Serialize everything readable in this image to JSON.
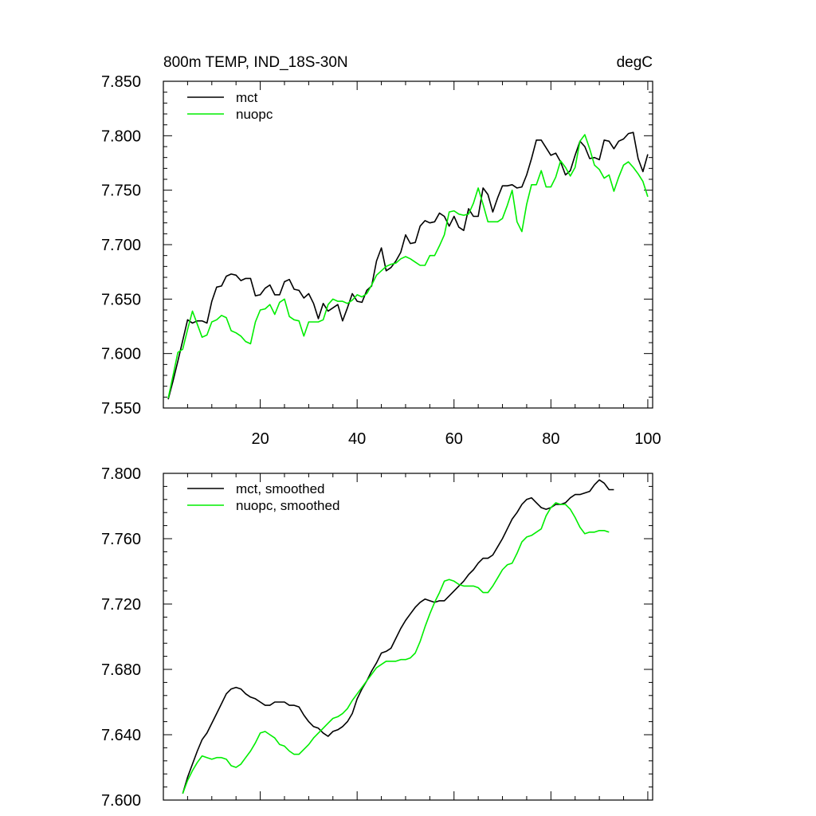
{
  "chart_data": [
    {
      "type": "line",
      "title": "800m TEMP, IND_18S-30N",
      "units": "degC",
      "xlim": [
        0,
        101
      ],
      "ylim": [
        7.55,
        7.85
      ],
      "xticks": [
        20,
        40,
        60,
        80,
        100
      ],
      "yticks": [
        7.55,
        7.6,
        7.65,
        7.7,
        7.75,
        7.8,
        7.85
      ],
      "ytick_labels": [
        "7.550",
        "7.600",
        "7.650",
        "7.700",
        "7.750",
        "7.800",
        "7.850"
      ],
      "x_start": 1,
      "series": [
        {
          "name": "mct",
          "color": "#000000",
          "values": [
            7.558,
            7.575,
            7.593,
            7.612,
            7.631,
            7.628,
            7.63,
            7.63,
            7.628,
            7.648,
            7.661,
            7.662,
            7.671,
            7.673,
            7.672,
            7.667,
            7.669,
            7.669,
            7.653,
            7.654,
            7.66,
            7.663,
            7.654,
            7.654,
            7.666,
            7.668,
            7.659,
            7.658,
            7.651,
            7.655,
            7.646,
            7.632,
            7.646,
            7.639,
            7.642,
            7.645,
            7.63,
            7.642,
            7.655,
            7.648,
            7.647,
            7.658,
            7.662,
            7.685,
            7.697,
            7.676,
            7.679,
            7.685,
            7.693,
            7.709,
            7.701,
            7.702,
            7.717,
            7.722,
            7.72,
            7.721,
            7.729,
            7.726,
            7.717,
            7.726,
            7.716,
            7.713,
            7.733,
            7.726,
            7.726,
            7.752,
            7.746,
            7.73,
            7.743,
            7.754,
            7.754,
            7.755,
            7.752,
            7.753,
            7.764,
            7.779,
            7.796,
            7.796,
            7.789,
            7.782,
            7.784,
            7.776,
            7.764,
            7.768,
            7.782,
            7.795,
            7.79,
            7.779,
            7.78,
            7.778,
            7.796,
            7.795,
            7.788,
            7.795,
            7.797,
            7.802,
            7.803,
            7.779,
            7.767,
            7.783
          ]
        },
        {
          "name": "nuopc",
          "color": "#00ee00",
          "values": [
            7.559,
            7.58,
            7.601,
            7.604,
            7.622,
            7.639,
            7.627,
            7.615,
            7.617,
            7.629,
            7.631,
            7.635,
            7.633,
            7.621,
            7.619,
            7.616,
            7.611,
            7.609,
            7.629,
            7.64,
            7.641,
            7.645,
            7.636,
            7.647,
            7.65,
            7.634,
            7.631,
            7.63,
            7.616,
            7.629,
            7.629,
            7.629,
            7.631,
            7.645,
            7.65,
            7.648,
            7.648,
            7.646,
            7.649,
            7.654,
            7.652,
            7.655,
            7.663,
            7.672,
            7.676,
            7.68,
            7.682,
            7.683,
            7.687,
            7.689,
            7.687,
            7.684,
            7.681,
            7.681,
            7.69,
            7.69,
            7.699,
            7.709,
            7.73,
            7.731,
            7.728,
            7.727,
            7.728,
            7.738,
            7.752,
            7.737,
            7.721,
            7.721,
            7.721,
            7.724,
            7.736,
            7.75,
            7.721,
            7.712,
            7.737,
            7.755,
            7.755,
            7.768,
            7.753,
            7.753,
            7.762,
            7.777,
            7.771,
            7.763,
            7.771,
            7.795,
            7.801,
            7.788,
            7.773,
            7.769,
            7.761,
            7.764,
            7.749,
            7.762,
            7.773,
            7.776,
            7.771,
            7.765,
            7.758,
            7.744
          ]
        }
      ]
    },
    {
      "type": "line",
      "title": "",
      "xlim": [
        0,
        101
      ],
      "ylim": [
        7.6,
        7.8
      ],
      "xticks": [
        20,
        40,
        60,
        80,
        100
      ],
      "yticks": [
        7.6,
        7.64,
        7.68,
        7.72,
        7.76,
        7.8
      ],
      "ytick_labels": [
        "7.600",
        "7.640",
        "7.680",
        "7.720",
        "7.760",
        "7.800"
      ],
      "x_start": 4,
      "series": [
        {
          "name": "mct, smoothed",
          "color": "#000000",
          "values": [
            7.604,
            7.614,
            7.622,
            7.63,
            7.637,
            7.641,
            7.647,
            7.653,
            7.659,
            7.665,
            7.668,
            7.669,
            7.668,
            7.665,
            7.663,
            7.662,
            7.66,
            7.658,
            7.658,
            7.66,
            7.66,
            7.66,
            7.658,
            7.658,
            7.657,
            7.652,
            7.648,
            7.645,
            7.644,
            7.641,
            7.639,
            7.642,
            7.643,
            7.645,
            7.648,
            7.653,
            7.662,
            7.668,
            7.673,
            7.679,
            7.684,
            7.69,
            7.691,
            7.693,
            7.699,
            7.705,
            7.71,
            7.714,
            7.718,
            7.721,
            7.723,
            7.722,
            7.721,
            7.722,
            7.722,
            7.725,
            7.728,
            7.731,
            7.734,
            7.738,
            7.741,
            7.745,
            7.748,
            7.748,
            7.75,
            7.755,
            7.76,
            7.766,
            7.772,
            7.776,
            7.781,
            7.784,
            7.785,
            7.782,
            7.779,
            7.778,
            7.779,
            7.781,
            7.781,
            7.782,
            7.785,
            7.787,
            7.787,
            7.788,
            7.789,
            7.793,
            7.796,
            7.794,
            7.79,
            7.79
          ]
        },
        {
          "name": "nuopc, smoothed",
          "color": "#00ee00",
          "values": [
            7.604,
            7.612,
            7.618,
            7.623,
            7.627,
            7.626,
            7.625,
            7.626,
            7.626,
            7.625,
            7.621,
            7.62,
            7.622,
            7.626,
            7.63,
            7.635,
            7.641,
            7.642,
            7.64,
            7.638,
            7.634,
            7.633,
            7.63,
            7.628,
            7.628,
            7.631,
            7.634,
            7.638,
            7.641,
            7.644,
            7.647,
            7.65,
            7.651,
            7.653,
            7.656,
            7.661,
            7.665,
            7.669,
            7.673,
            7.677,
            7.681,
            7.683,
            7.685,
            7.685,
            7.685,
            7.686,
            7.686,
            7.687,
            7.69,
            7.697,
            7.706,
            7.714,
            7.721,
            7.727,
            7.734,
            7.735,
            7.734,
            7.732,
            7.731,
            7.731,
            7.731,
            7.73,
            7.727,
            7.727,
            7.731,
            7.736,
            7.741,
            7.744,
            7.745,
            7.751,
            7.758,
            7.761,
            7.762,
            7.764,
            7.766,
            7.774,
            7.779,
            7.782,
            7.781,
            7.781,
            7.778,
            7.773,
            7.767,
            7.763,
            7.764,
            7.764,
            7.765,
            7.765,
            7.764
          ]
        }
      ]
    }
  ]
}
